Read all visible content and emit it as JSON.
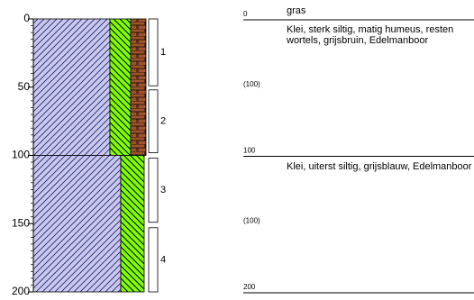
{
  "depth_axis": {
    "lim": [
      0,
      200
    ],
    "ticks": [
      0,
      50,
      100,
      150,
      200
    ],
    "minor_tick_step": 5
  },
  "surface": "gras",
  "boundaries": [
    0,
    100,
    200
  ],
  "layers": [
    {
      "description": "Klei, sterk siltig, matig humeus, resten wortels, grijsbruin, Edelmanboor",
      "note": "(100)"
    },
    {
      "description": "Klei, uiterst siltig, grijsblauw, Edelmanboor",
      "note": "(100)"
    }
  ],
  "samples": [
    {
      "label": 1,
      "top": 0,
      "bottom": 49
    },
    {
      "label": 2,
      "top": 52,
      "bottom": 98
    },
    {
      "label": 3,
      "top": 102,
      "bottom": 149
    },
    {
      "label": 4,
      "top": 153,
      "bottom": 200
    }
  ]
}
